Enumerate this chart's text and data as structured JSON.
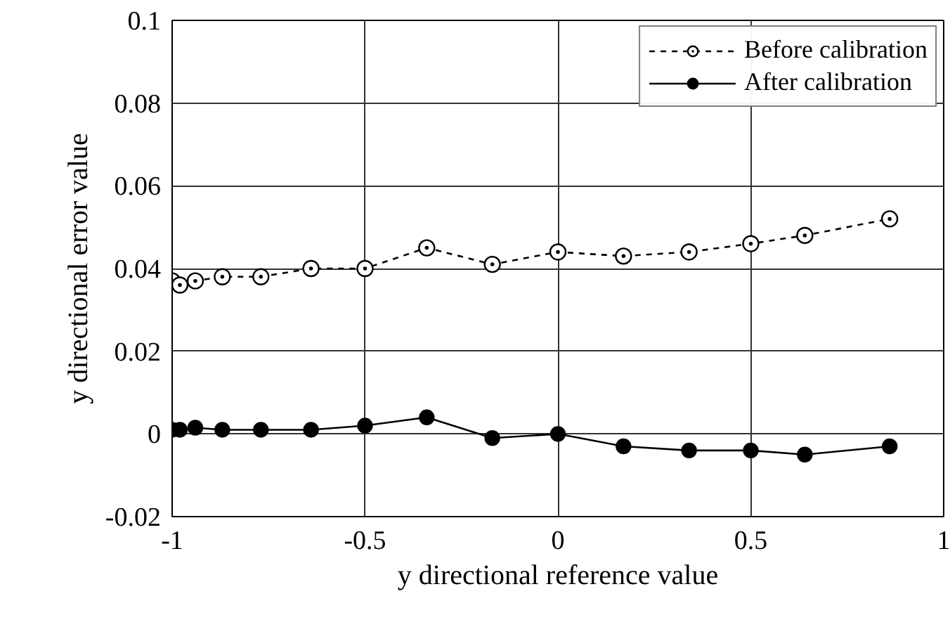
{
  "chart_data": {
    "type": "line",
    "xlabel": "y directional reference value",
    "ylabel": "y directional error value",
    "x": [
      -1,
      -0.98,
      -0.94,
      -0.87,
      -0.77,
      -0.64,
      -0.5,
      -0.34,
      -0.17,
      0,
      0.17,
      0.34,
      0.5,
      0.64,
      0.86
    ],
    "series": [
      {
        "name": "Before calibration",
        "color": "#000000",
        "line_style": "dashed",
        "marker": "circle_dot",
        "values": [
          0.037,
          0.036,
          0.037,
          0.038,
          0.038,
          0.04,
          0.04,
          0.045,
          0.041,
          0.044,
          0.043,
          0.044,
          0.046,
          0.048,
          0.052
        ]
      },
      {
        "name": "After calibration",
        "color": "#000000",
        "line_style": "solid",
        "marker": "circle",
        "values": [
          0.001,
          0.001,
          0.0015,
          0.001,
          0.001,
          0.001,
          0.002,
          0.004,
          -0.001,
          0.0,
          -0.003,
          -0.004,
          -0.004,
          -0.005,
          -0.003
        ]
      }
    ],
    "xlim": [
      -1,
      1
    ],
    "xticks": [
      -1,
      -0.5,
      0,
      0.5,
      1
    ],
    "ylim": [
      -0.02,
      0.1
    ],
    "yticks": [
      -0.02,
      0,
      0.02,
      0.04,
      0.06,
      0.08,
      0.1
    ],
    "grid": true,
    "legend": "top right"
  }
}
